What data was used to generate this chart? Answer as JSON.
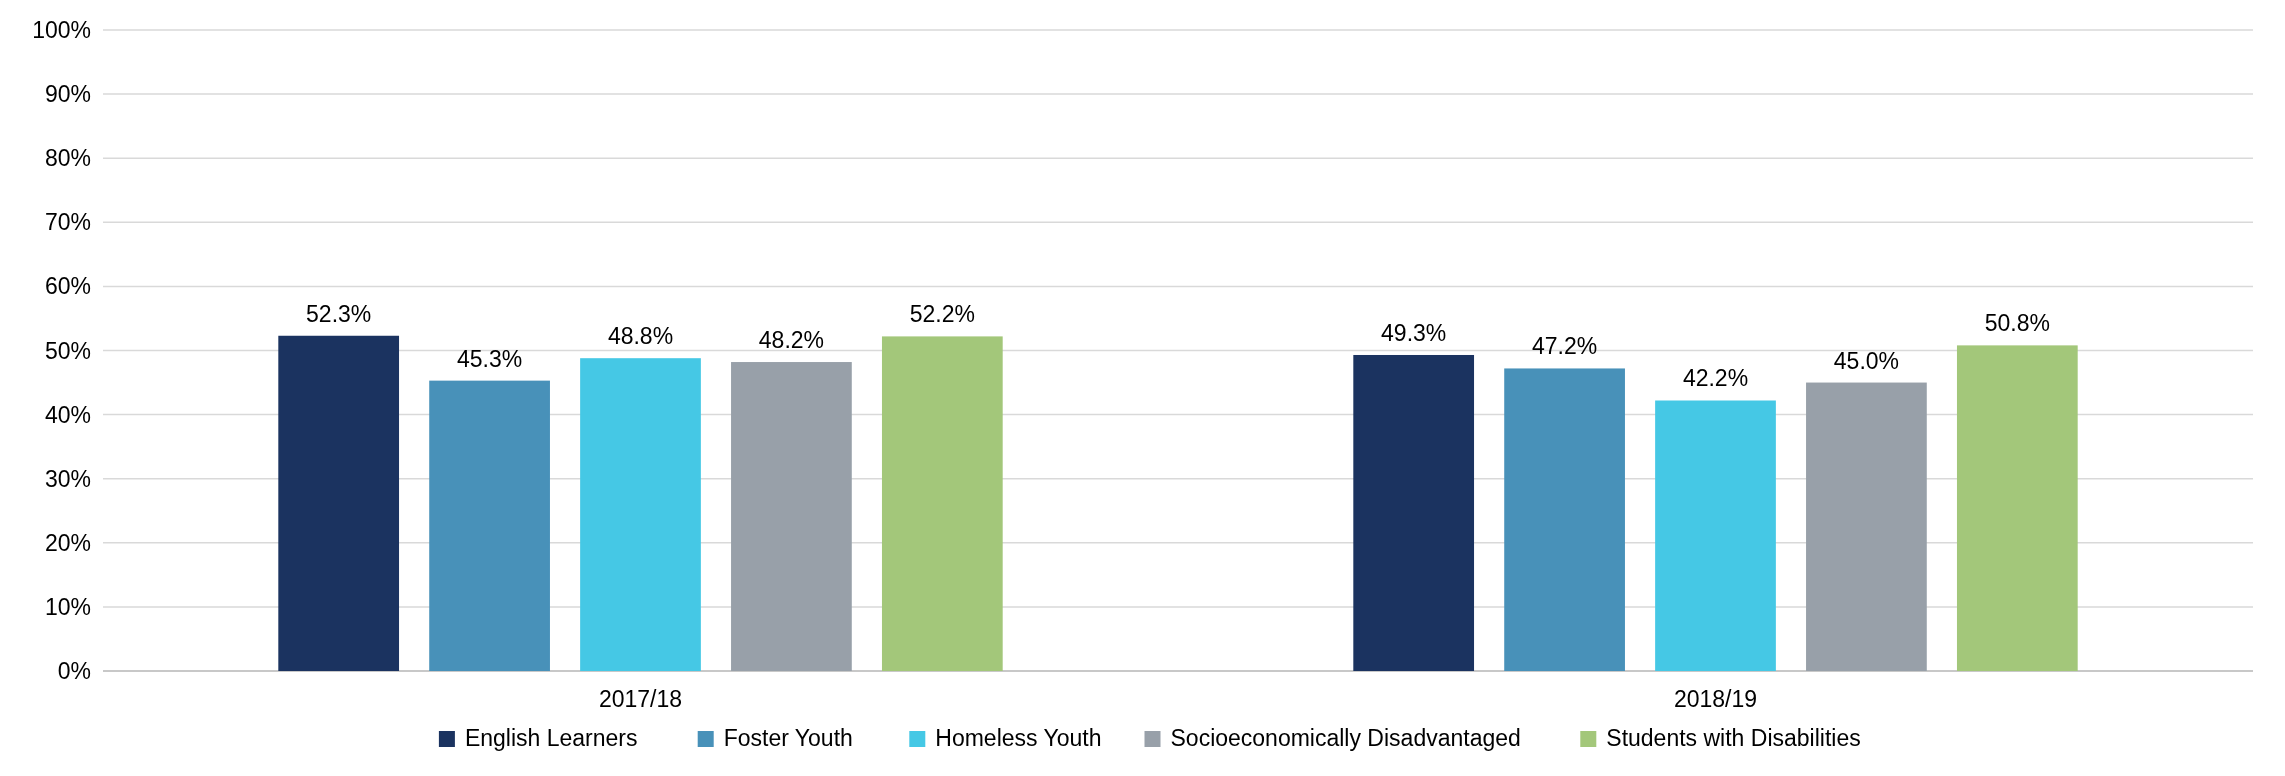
{
  "chart_data": {
    "type": "bar",
    "categories": [
      "2017/18",
      "2018/19"
    ],
    "series": [
      {
        "name": "English Learners",
        "color": "#1b3360",
        "values": [
          52.3,
          49.3
        ]
      },
      {
        "name": "Foster Youth",
        "color": "#4891b9",
        "values": [
          45.3,
          47.2
        ]
      },
      {
        "name": "Homeless Youth",
        "color": "#45c8e5",
        "values": [
          48.8,
          42.2
        ]
      },
      {
        "name": "Socioeconomically Disadvantaged",
        "color": "#98a0a9",
        "values": [
          48.2,
          45.0
        ]
      },
      {
        "name": "Students with Disabilities",
        "color": "#a3c77a",
        "values": [
          52.2,
          50.8
        ]
      }
    ],
    "ylim": [
      0,
      100
    ],
    "yticks": [
      {
        "value": 0,
        "label": "0%"
      },
      {
        "value": 10,
        "label": "10%"
      },
      {
        "value": 20,
        "label": "20%"
      },
      {
        "value": 30,
        "label": "30%"
      },
      {
        "value": 40,
        "label": "40%"
      },
      {
        "value": 50,
        "label": "50%"
      },
      {
        "value": 60,
        "label": "60%"
      },
      {
        "value": 70,
        "label": "70%"
      },
      {
        "value": 80,
        "label": "80%"
      },
      {
        "value": 90,
        "label": "90%"
      },
      {
        "value": 100,
        "label": "100%"
      }
    ],
    "value_labels": [
      [
        "52.3%",
        "49.3%"
      ],
      [
        "45.3%",
        "47.2%"
      ],
      [
        "48.8%",
        "42.2%"
      ],
      [
        "48.2%",
        "45.0%"
      ],
      [
        "52.2%",
        "50.8%"
      ]
    ],
    "grid": "y",
    "legend": "bottom"
  }
}
